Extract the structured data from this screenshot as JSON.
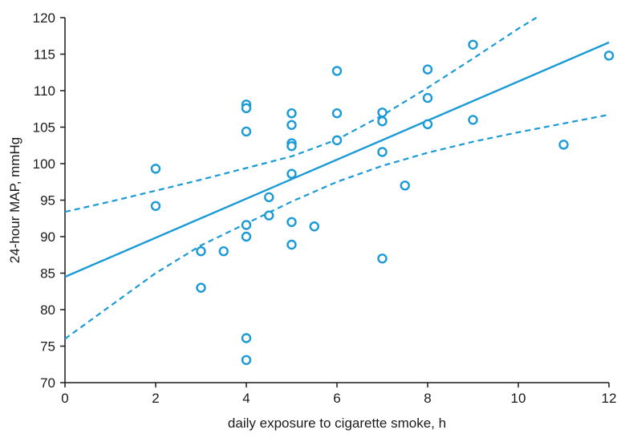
{
  "chart_data": {
    "type": "scatter",
    "title": "",
    "xlabel": "daily exposure to cigarette smoke, h",
    "ylabel": "24-hour MAP, mmHg",
    "xlim": [
      0,
      12
    ],
    "ylim": [
      70,
      120
    ],
    "x_ticks": [
      0,
      2,
      4,
      6,
      8,
      10,
      12
    ],
    "y_ticks": [
      70,
      75,
      80,
      85,
      90,
      95,
      100,
      105,
      110,
      115,
      120
    ],
    "grid": false,
    "legend": "none",
    "color": "#1a9ad6",
    "points": [
      {
        "x": 2,
        "y": 99.3
      },
      {
        "x": 2,
        "y": 94.2
      },
      {
        "x": 3,
        "y": 88.0
      },
      {
        "x": 3,
        "y": 83.0
      },
      {
        "x": 3.5,
        "y": 88.0
      },
      {
        "x": 4,
        "y": 108.1
      },
      {
        "x": 4,
        "y": 107.6
      },
      {
        "x": 4,
        "y": 104.4
      },
      {
        "x": 4,
        "y": 91.6
      },
      {
        "x": 4,
        "y": 90.0
      },
      {
        "x": 4,
        "y": 76.1
      },
      {
        "x": 4,
        "y": 73.1
      },
      {
        "x": 4.5,
        "y": 95.4
      },
      {
        "x": 4.5,
        "y": 92.9
      },
      {
        "x": 5,
        "y": 106.9
      },
      {
        "x": 5,
        "y": 105.3
      },
      {
        "x": 5,
        "y": 102.8
      },
      {
        "x": 5,
        "y": 102.4
      },
      {
        "x": 5,
        "y": 98.6
      },
      {
        "x": 5,
        "y": 92.0
      },
      {
        "x": 5,
        "y": 88.9
      },
      {
        "x": 5.5,
        "y": 91.4
      },
      {
        "x": 6,
        "y": 112.7
      },
      {
        "x": 6,
        "y": 106.9
      },
      {
        "x": 6,
        "y": 103.2
      },
      {
        "x": 7,
        "y": 107.0
      },
      {
        "x": 7,
        "y": 105.8
      },
      {
        "x": 7,
        "y": 101.6
      },
      {
        "x": 7,
        "y": 87.0
      },
      {
        "x": 7.5,
        "y": 97.0
      },
      {
        "x": 8,
        "y": 112.9
      },
      {
        "x": 8,
        "y": 109.0
      },
      {
        "x": 8,
        "y": 105.4
      },
      {
        "x": 9,
        "y": 116.3
      },
      {
        "x": 9,
        "y": 106.0
      },
      {
        "x": 11,
        "y": 102.6
      },
      {
        "x": 12,
        "y": 114.8
      }
    ],
    "regression_line": {
      "x": [
        0,
        12
      ],
      "y": [
        84.5,
        116.6
      ]
    },
    "ci_upper": {
      "x": [
        0,
        1,
        2,
        3,
        4,
        5,
        6,
        7,
        8,
        9,
        10,
        10.4
      ],
      "y": [
        93.4,
        94.8,
        96.3,
        97.8,
        99.4,
        101.0,
        103.3,
        106.6,
        110.4,
        114.4,
        118.5,
        120.0
      ]
    },
    "ci_lower": {
      "x": [
        0,
        1,
        2,
        3,
        4,
        5,
        6,
        7,
        8,
        9,
        10,
        11,
        12
      ],
      "y": [
        76.0,
        80.5,
        85.0,
        88.8,
        91.8,
        94.8,
        97.5,
        99.7,
        101.5,
        103.0,
        104.3,
        105.5,
        106.7
      ]
    }
  }
}
